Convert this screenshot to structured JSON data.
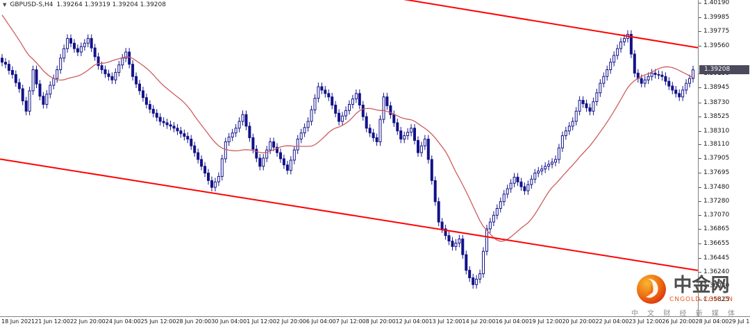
{
  "header": {
    "symbol_period": "GBPUSD-S,H4",
    "ohlc_text": "1.39264 1.39319 1.39204 1.39208"
  },
  "price_axis": {
    "labels": [
      "1.40190",
      "1.39985",
      "1.39775",
      "1.39560",
      "1.39150",
      "1.38945",
      "1.38730",
      "1.38525",
      "1.38310",
      "1.38110",
      "1.37905",
      "1.37695",
      "1.37480",
      "1.37280",
      "1.37070",
      "1.36865",
      "1.36655",
      "1.36445",
      "1.36240",
      "1.36030",
      "1.35825"
    ],
    "current": "1.39208",
    "current_value": 1.39208
  },
  "time_axis": {
    "labels": [
      "18 Jun 2021",
      "21 Jun 12:00",
      "22 Jun 20:00",
      "24 Jun 04:00",
      "25 Jun 12:00",
      "28 Jun 20:00",
      "30 Jun 04:00",
      "1 Jul 12:00",
      "2 Jul 20:00",
      "6 Jul 04:00",
      "7 Jul 12:00",
      "8 Jul 20:00",
      "12 Jul 04:00",
      "13 Jul 12:00",
      "14 Jul 20:00",
      "16 Jul 04:00",
      "19 Jul 12:00",
      "20 Jul 20:00",
      "22 Jul 04:00",
      "23 Jul 12:00",
      "26 Jul 20:00",
      "28 Jul 04:00",
      "29 Jul 12:00",
      "30 Jul 20:00",
      "3 Aug 04:00",
      "4 Aug 12:00",
      "5 Aug 20:00"
    ]
  },
  "watermark": {
    "brand": "中金网",
    "domain": "CNGOLD.COM.CN",
    "tagline": "中 文 财 经 新 媒 体"
  },
  "chart_data": {
    "type": "candlestick",
    "title": "GBPUSD-S H4",
    "symbol": "GBPUSD-S",
    "timeframe": "H4",
    "current_bar": {
      "open": 1.39264,
      "high": 1.39319,
      "low": 1.39204,
      "close": 1.39208
    },
    "ylim": [
      1.35584,
      1.40235
    ],
    "grid": false,
    "legend": false,
    "wick": 0.0006,
    "candle_width": 3,
    "open_first": 1.3938,
    "closes": [
      1.3932,
      1.3929,
      1.392,
      1.3914,
      1.3902,
      1.3893,
      1.3875,
      1.386,
      1.389,
      1.3921,
      1.39,
      1.3882,
      1.387,
      1.3885,
      1.3898,
      1.3908,
      1.3921,
      1.3938,
      1.3952,
      1.3967,
      1.396,
      1.3952,
      1.3947,
      1.3955,
      1.396,
      1.3967,
      1.3953,
      1.394,
      1.3927,
      1.3921,
      1.3915,
      1.3911,
      1.3906,
      1.3917,
      1.3928,
      1.3938,
      1.3947,
      1.3929,
      1.3911,
      1.39,
      1.389,
      1.388,
      1.387,
      1.3863,
      1.3857,
      1.3851,
      1.3845,
      1.3843,
      1.384,
      1.3838,
      1.3835,
      1.3831,
      1.3827,
      1.3823,
      1.3819,
      1.3809,
      1.3799,
      1.3789,
      1.3779,
      1.3769,
      1.3758,
      1.3748,
      1.3756,
      1.3764,
      1.379,
      1.3815,
      1.3822,
      1.3828,
      1.3835,
      1.3845,
      1.3855,
      1.3838,
      1.3821,
      1.3804,
      1.3791,
      1.3779,
      1.3791,
      1.3803,
      1.3815,
      1.3807,
      1.3799,
      1.379,
      1.3781,
      1.3773,
      1.3788,
      1.3803,
      1.3819,
      1.3828,
      1.3836,
      1.3845,
      1.3862,
      1.3879,
      1.3896,
      1.3891,
      1.3886,
      1.3881,
      1.3869,
      1.3857,
      1.3845,
      1.3853,
      1.3861,
      1.387,
      1.3878,
      1.3886,
      1.3869,
      1.3852,
      1.3835,
      1.3828,
      1.3821,
      1.3815,
      1.3848,
      1.3881,
      1.3868,
      1.3855,
      1.3843,
      1.3831,
      1.3819,
      1.3824,
      1.3829,
      1.3835,
      1.3817,
      1.3799,
      1.3809,
      1.3819,
      1.3789,
      1.3758,
      1.3727,
      1.3697,
      1.3687,
      1.3677,
      1.3669,
      1.3661,
      1.3666,
      1.3672,
      1.3649,
      1.3626,
      1.3615,
      1.3605,
      1.3613,
      1.3621,
      1.3654,
      1.3687,
      1.3697,
      1.3707,
      1.3717,
      1.3727,
      1.3738,
      1.3746,
      1.3754,
      1.3763,
      1.3756,
      1.3749,
      1.3743,
      1.3752,
      1.376,
      1.3769,
      1.3772,
      1.3775,
      1.3779,
      1.3782,
      1.3785,
      1.3789,
      1.3806,
      1.3824,
      1.3831,
      1.3838,
      1.3845,
      1.386,
      1.3876,
      1.3871,
      1.3865,
      1.386,
      1.3874,
      1.3887,
      1.3901,
      1.3911,
      1.3921,
      1.3932,
      1.3942,
      1.3952,
      1.3962,
      1.3967,
      1.3973,
      1.3944,
      1.3916,
      1.3908,
      1.3901,
      1.3906,
      1.3911,
      1.3916,
      1.3914,
      1.3913,
      1.3911,
      1.3904,
      1.3897,
      1.3891,
      1.3886,
      1.3881,
      1.3891,
      1.3901,
      1.3908,
      1.39208
    ],
    "ma_period": 20,
    "ma_prefix": [
      1.4085,
      1.4077,
      1.4069,
      1.4061,
      1.4053,
      1.4045,
      1.4037,
      1.4029,
      1.4021,
      1.4013,
      1.4005,
      1.3997,
      1.3989,
      1.3981,
      1.3973,
      1.3965,
      1.3957,
      1.3949,
      1.3941,
      1.3935
    ],
    "trendlines": [
      {
        "i1": 118,
        "p1": 1.40235,
        "i2": 201,
        "p2": 1.39545
      },
      {
        "i1": 0,
        "p1": 1.3789,
        "i2": 201,
        "p2": 1.3627
      }
    ],
    "colors": {
      "candle": "#12128a",
      "candle_up_fill": "#ffffff",
      "ma": "#cd5c5c",
      "trend": "#ff0000"
    }
  }
}
